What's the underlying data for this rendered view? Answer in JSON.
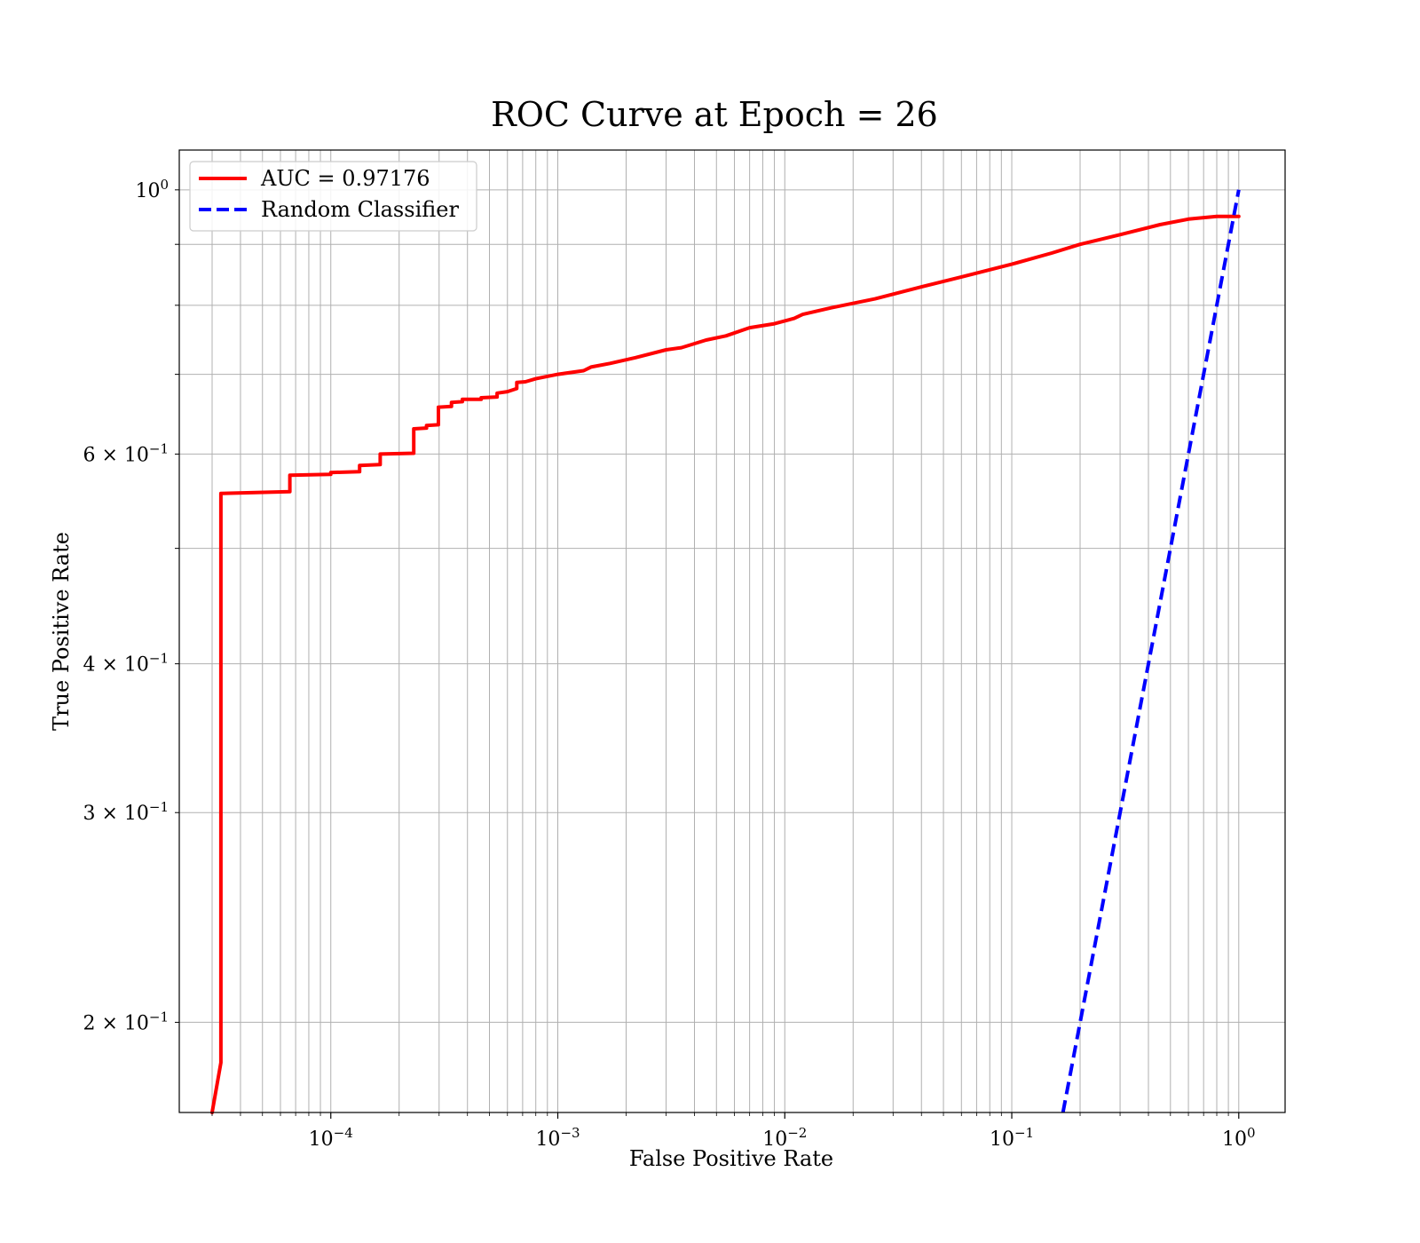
{
  "chart_data": {
    "type": "line",
    "title": "ROC Curve at Epoch = 26",
    "xlabel": "False Positive Rate",
    "ylabel": "True Positive Rate",
    "xscale": "log",
    "yscale": "log",
    "xlim": [
      2.15e-05,
      1.6
    ],
    "ylim": [
      0.168,
      1.08
    ],
    "grid": "major and minor",
    "legend_position": "top-left",
    "x_ticks": [
      {
        "value": 0.0001,
        "base": "10",
        "exp": "−4"
      },
      {
        "value": 0.001,
        "base": "10",
        "exp": "−3"
      },
      {
        "value": 0.01,
        "base": "10",
        "exp": "−2"
      },
      {
        "value": 0.1,
        "base": "10",
        "exp": "−1"
      },
      {
        "value": 1,
        "base": "10",
        "exp": "0"
      }
    ],
    "y_ticks": [
      {
        "value": 1,
        "mant": "",
        "base": "10",
        "exp": "0"
      },
      {
        "value": 0.6,
        "mant": "6 × ",
        "base": "10",
        "exp": "−1"
      },
      {
        "value": 0.4,
        "mant": "4 × ",
        "base": "10",
        "exp": "−1"
      },
      {
        "value": 0.3,
        "mant": "3 × ",
        "base": "10",
        "exp": "−1"
      },
      {
        "value": 0.2,
        "mant": "2 × ",
        "base": "10",
        "exp": "−1"
      }
    ],
    "y_minor_ticks": [
      0.9,
      0.8,
      0.7,
      0.5
    ],
    "series": [
      {
        "name": "AUC = 0.97176",
        "color": "#ff0000",
        "style": "solid",
        "points": [
          [
            3e-05,
            0.168
          ],
          [
            3.28e-05,
            0.185
          ],
          [
            3.28e-05,
            0.556
          ],
          [
            6.6e-05,
            0.558
          ],
          [
            6.6e-05,
            0.576
          ],
          [
            0.0001,
            0.577
          ],
          [
            0.0001,
            0.579
          ],
          [
            0.000134,
            0.58
          ],
          [
            0.000134,
            0.587
          ],
          [
            0.000165,
            0.588
          ],
          [
            0.000165,
            0.6
          ],
          [
            0.000232,
            0.601
          ],
          [
            0.000232,
            0.63
          ],
          [
            0.000264,
            0.631
          ],
          [
            0.000264,
            0.634
          ],
          [
            0.000298,
            0.635
          ],
          [
            0.000298,
            0.657
          ],
          [
            0.00034,
            0.658
          ],
          [
            0.00034,
            0.663
          ],
          [
            0.00038,
            0.664
          ],
          [
            0.00038,
            0.667
          ],
          [
            0.00046,
            0.667
          ],
          [
            0.00046,
            0.669
          ],
          [
            0.00054,
            0.67
          ],
          [
            0.00054,
            0.675
          ],
          [
            0.0006,
            0.677
          ],
          [
            0.00066,
            0.681
          ],
          [
            0.00066,
            0.689
          ],
          [
            0.00072,
            0.69
          ],
          [
            0.0008,
            0.694
          ],
          [
            0.001,
            0.7
          ],
          [
            0.0013,
            0.705
          ],
          [
            0.0014,
            0.71
          ],
          [
            0.0017,
            0.715
          ],
          [
            0.0022,
            0.723
          ],
          [
            0.003,
            0.734
          ],
          [
            0.0035,
            0.737
          ],
          [
            0.0045,
            0.748
          ],
          [
            0.0055,
            0.754
          ],
          [
            0.007,
            0.766
          ],
          [
            0.009,
            0.772
          ],
          [
            0.011,
            0.78
          ],
          [
            0.012,
            0.786
          ],
          [
            0.016,
            0.796
          ],
          [
            0.025,
            0.81
          ],
          [
            0.04,
            0.829
          ],
          [
            0.06,
            0.845
          ],
          [
            0.1,
            0.866
          ],
          [
            0.15,
            0.885
          ],
          [
            0.2,
            0.9
          ],
          [
            0.3,
            0.917
          ],
          [
            0.45,
            0.935
          ],
          [
            0.6,
            0.945
          ],
          [
            0.8,
            0.95
          ],
          [
            1.0,
            0.95
          ]
        ]
      },
      {
        "name": "Random Classifier",
        "color": "#0000ff",
        "style": "dashed",
        "points": [
          [
            0.168,
            0.168
          ],
          [
            1.0,
            1.0
          ]
        ]
      }
    ]
  }
}
